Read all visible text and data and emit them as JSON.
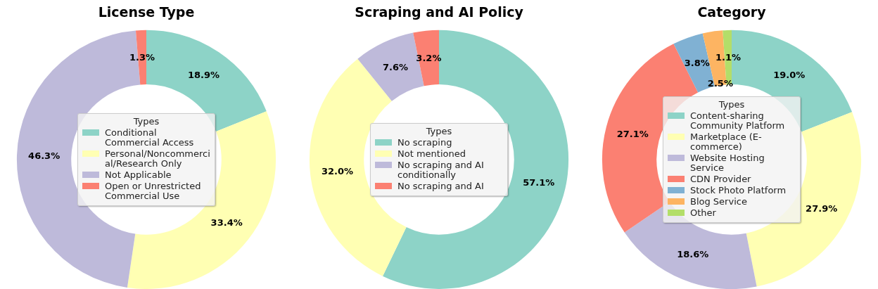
{
  "chart_data": [
    {
      "type": "donut",
      "title": "License Type",
      "legend_title": "Types",
      "legend": "center",
      "categories": [
        "Conditional Commercial Access",
        "Personal/Noncommercial/Research Only",
        "Not Applicable",
        "Open or Unrestricted Commercial Use"
      ],
      "values": [
        18.9,
        33.4,
        46.3,
        1.3
      ],
      "colors": [
        "#8dd3c7",
        "#ffffb3",
        "#bebada",
        "#fb8072"
      ],
      "value_labels": [
        "18.9%",
        "33.4%",
        "46.3%",
        "1.3%"
      ]
    },
    {
      "type": "donut",
      "title": "Scraping and AI Policy",
      "legend_title": "Types",
      "legend": "center",
      "categories": [
        "No scraping",
        "Not mentioned",
        "No scraping and AI conditionally",
        "No scraping and AI"
      ],
      "values": [
        57.1,
        32.0,
        7.6,
        3.2
      ],
      "colors": [
        "#8dd3c7",
        "#ffffb3",
        "#bebada",
        "#fb8072"
      ],
      "value_labels": [
        "57.1%",
        "32.0%",
        "7.6%",
        "3.2%"
      ]
    },
    {
      "type": "donut",
      "title": "Category",
      "legend_title": "Types",
      "legend": "center",
      "categories": [
        "Content-sharing Community Platform",
        "Marketplace (E-commerce)",
        "Website Hosting Service",
        "CDN Provider",
        "Stock Photo Platform",
        "Blog Service",
        "Other"
      ],
      "values": [
        19.0,
        27.9,
        18.6,
        27.1,
        3.8,
        2.5,
        1.1
      ],
      "colors": [
        "#8dd3c7",
        "#ffffb3",
        "#bebada",
        "#fb8072",
        "#80b1d3",
        "#fdb462",
        "#b3de69"
      ],
      "value_labels": [
        "19.0%",
        "27.9%",
        "18.6%",
        "27.1%",
        "3.8%",
        "2.5%",
        "1.1%"
      ]
    }
  ]
}
